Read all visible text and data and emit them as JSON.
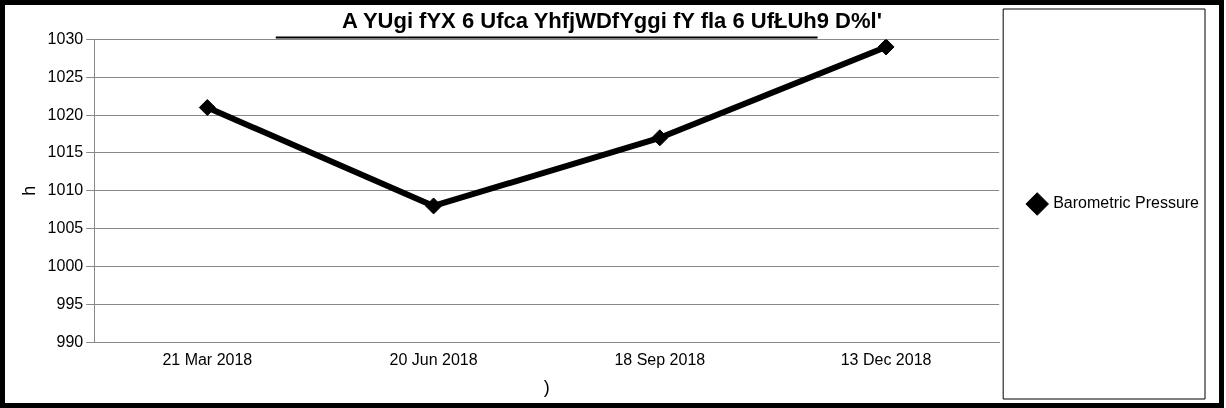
{
  "chart_data": {
    "type": "line",
    "title": "A YUgi fYX 6 Ufca YhfjWDfYggi fY fla 6 UfŁUh9 D%l'",
    "xlabel": ")",
    "ylabel": "h",
    "categories": [
      "21 Mar 2018",
      "20 Jun 2018",
      "18 Sep 2018",
      "13 Dec 2018"
    ],
    "series": [
      {
        "name": "Barometric Pressure",
        "color": "#000000",
        "values": [
          1021,
          1008,
          1017,
          1029
        ]
      }
    ],
    "ylim": [
      990,
      1030
    ],
    "yticks": [
      990,
      995,
      1000,
      1005,
      1010,
      1015,
      1020,
      1025,
      1030
    ],
    "grid": "y",
    "legend": "right",
    "marker": "diamond",
    "line_style": "solid"
  }
}
